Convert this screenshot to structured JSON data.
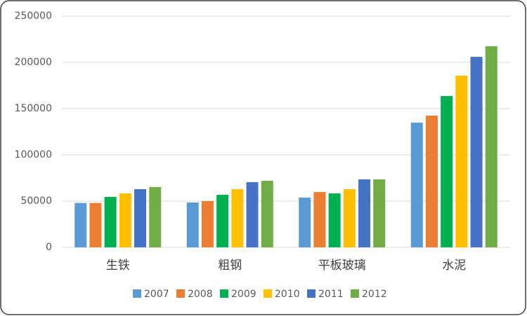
{
  "chart_data": {
    "type": "bar",
    "categories": [
      "生铁",
      "粗钢",
      "平板玻璃",
      "水泥"
    ],
    "series": [
      {
        "name": "2007",
        "color": "#5b9bd5",
        "values": [
          48000,
          48500,
          53800,
          134800
        ]
      },
      {
        "name": "2008",
        "color": "#ed7d31",
        "values": [
          48000,
          50000,
          59800,
          142400
        ]
      },
      {
        "name": "2009",
        "color": "#00b050",
        "values": [
          54500,
          56800,
          58300,
          163600
        ]
      },
      {
        "name": "2010",
        "color": "#ffc000",
        "values": [
          58300,
          62900,
          62900,
          185600
        ]
      },
      {
        "name": "2011",
        "color": "#4472c4",
        "values": [
          62900,
          70500,
          73500,
          206000
        ]
      },
      {
        "name": "2012",
        "color": "#70ad47",
        "values": [
          65200,
          72000,
          73500,
          217400
        ]
      }
    ],
    "ylim": [
      0,
      250000
    ],
    "yticks": [
      0,
      50000,
      100000,
      150000,
      200000,
      250000
    ],
    "grid": true
  }
}
